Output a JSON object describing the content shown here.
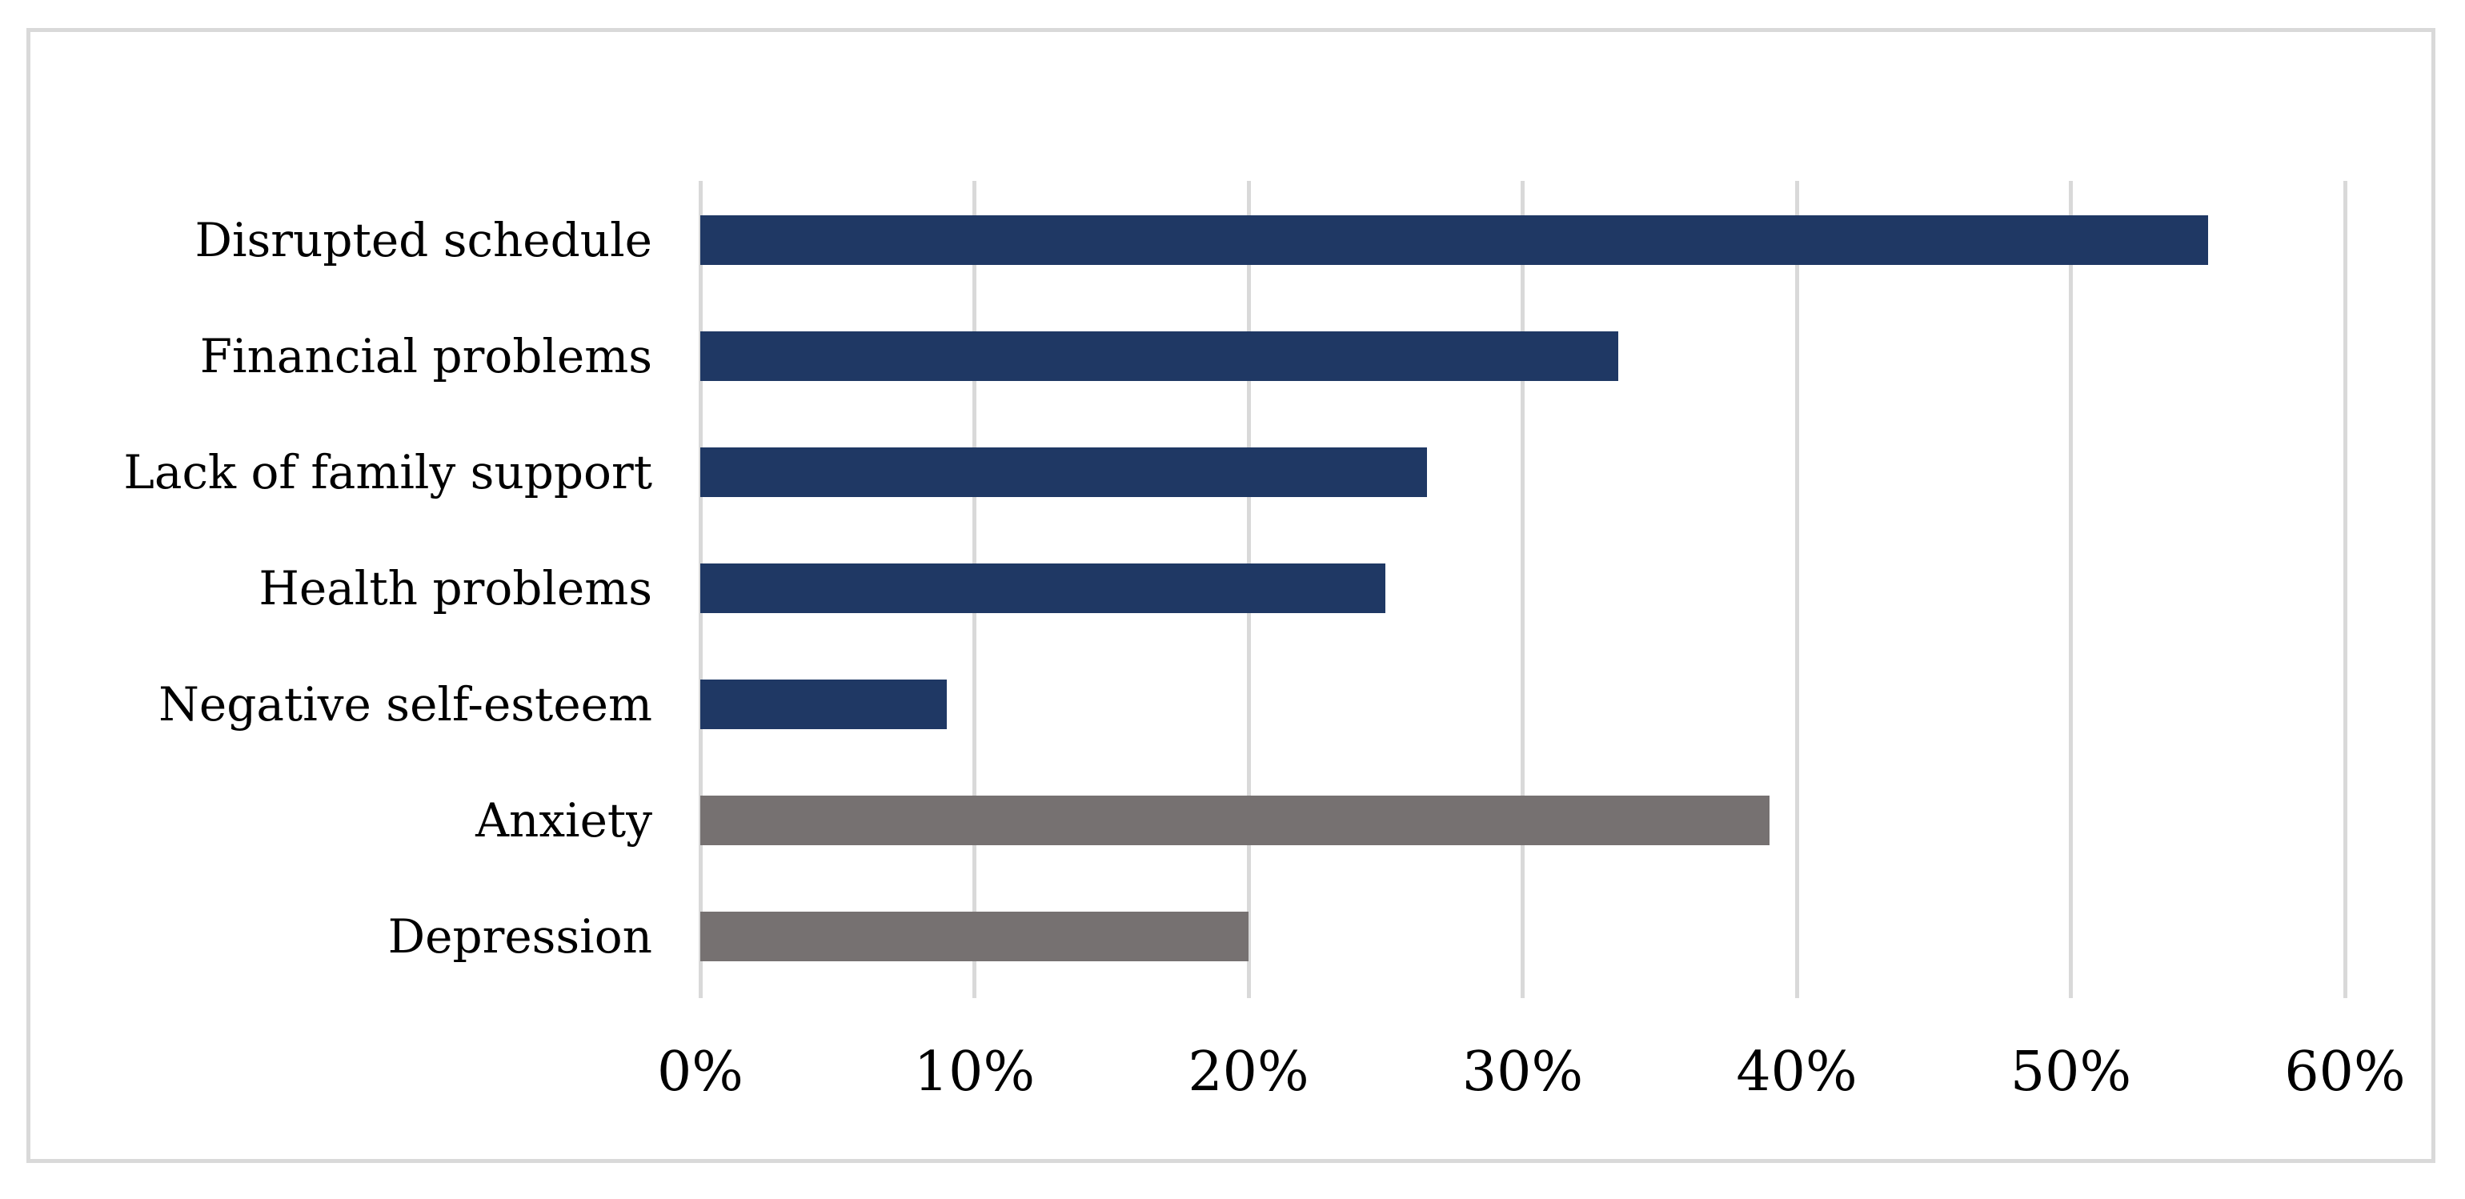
{
  "chart_data": {
    "type": "bar",
    "orientation": "horizontal",
    "title": "",
    "xlabel": "",
    "ylabel": "",
    "categories": [
      "Disrupted schedule",
      "Financial problems",
      "Lack of family support",
      "Health problems",
      "Negative self-esteem",
      "Anxiety",
      "Depression"
    ],
    "values": [
      55,
      33.5,
      26.5,
      25,
      9,
      39,
      20
    ],
    "unit": "%",
    "bar_colors": [
      "#1F3864",
      "#1F3864",
      "#1F3864",
      "#1F3864",
      "#1F3864",
      "#767171",
      "#767171"
    ],
    "x_ticks": [
      "0%",
      "10%",
      "20%",
      "30%",
      "40%",
      "50%",
      "60%"
    ],
    "xlim": [
      0,
      60
    ],
    "grid": "vertical-major-gridlines",
    "legend": "none",
    "colors": {
      "navy_bar": "#1F3864",
      "gray_bar": "#767171",
      "gridline": "#D9D9D9",
      "figure_border": "#D9D9D9",
      "text": "#000000",
      "background": "#FFFFFF"
    }
  }
}
